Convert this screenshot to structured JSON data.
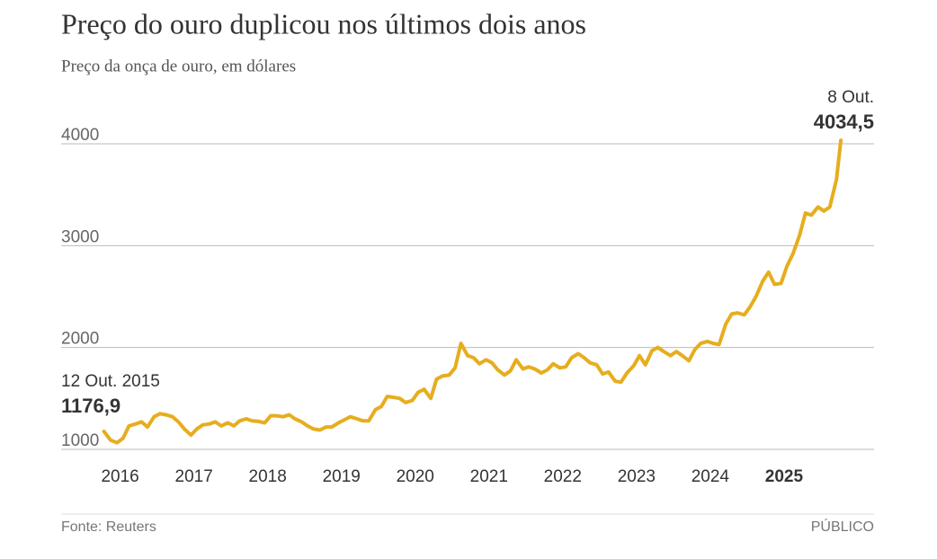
{
  "chart_data": {
    "type": "line",
    "title": "Preço do ouro duplicou nos últimos dois anos",
    "subtitle": "Preço da onça de ouro, em dólares",
    "source": "Fonte: Reuters",
    "brand": "PÚBLICO",
    "x": [
      2015.78,
      2015.87,
      2015.96,
      2016.04,
      2016.12,
      2016.21,
      2016.29,
      2016.37,
      2016.46,
      2016.54,
      2016.62,
      2016.71,
      2016.79,
      2016.87,
      2016.96,
      2017.04,
      2017.12,
      2017.21,
      2017.29,
      2017.37,
      2017.46,
      2017.54,
      2017.62,
      2017.71,
      2017.79,
      2017.87,
      2017.96,
      2018.04,
      2018.12,
      2018.21,
      2018.29,
      2018.37,
      2018.46,
      2018.54,
      2018.62,
      2018.71,
      2018.79,
      2018.87,
      2018.96,
      2019.04,
      2019.12,
      2019.21,
      2019.29,
      2019.37,
      2019.46,
      2019.54,
      2019.62,
      2019.71,
      2019.79,
      2019.87,
      2019.96,
      2020.04,
      2020.12,
      2020.21,
      2020.29,
      2020.37,
      2020.46,
      2020.54,
      2020.62,
      2020.71,
      2020.79,
      2020.87,
      2020.96,
      2021.04,
      2021.12,
      2021.21,
      2021.29,
      2021.37,
      2021.46,
      2021.54,
      2021.62,
      2021.71,
      2021.79,
      2021.87,
      2021.96,
      2022.04,
      2022.12,
      2022.21,
      2022.29,
      2022.37,
      2022.46,
      2022.54,
      2022.62,
      2022.71,
      2022.79,
      2022.87,
      2022.96,
      2023.04,
      2023.12,
      2023.21,
      2023.29,
      2023.37,
      2023.46,
      2023.54,
      2023.62,
      2023.71,
      2023.79,
      2023.87,
      2023.96,
      2024.04,
      2024.12,
      2024.21,
      2024.29,
      2024.37,
      2024.46,
      2024.54,
      2024.62,
      2024.71,
      2024.79,
      2024.87,
      2024.96,
      2025.04,
      2025.12,
      2025.21,
      2025.29,
      2025.37,
      2025.46,
      2025.54,
      2025.62,
      2025.71,
      2025.77
    ],
    "series": [
      {
        "name": "Preço do ouro",
        "color": "#e6ad1e",
        "values": [
          1176.9,
          1090,
          1065,
          1110,
          1230,
          1250,
          1270,
          1220,
          1320,
          1350,
          1340,
          1320,
          1270,
          1200,
          1140,
          1200,
          1240,
          1250,
          1270,
          1230,
          1260,
          1230,
          1280,
          1300,
          1280,
          1275,
          1260,
          1330,
          1330,
          1320,
          1340,
          1300,
          1270,
          1230,
          1200,
          1190,
          1220,
          1220,
          1260,
          1290,
          1320,
          1300,
          1280,
          1280,
          1390,
          1420,
          1520,
          1510,
          1500,
          1460,
          1480,
          1560,
          1590,
          1500,
          1690,
          1720,
          1730,
          1800,
          2040,
          1920,
          1900,
          1840,
          1880,
          1850,
          1780,
          1730,
          1770,
          1880,
          1790,
          1810,
          1790,
          1750,
          1780,
          1840,
          1800,
          1810,
          1900,
          1940,
          1900,
          1850,
          1830,
          1740,
          1760,
          1670,
          1660,
          1750,
          1820,
          1920,
          1830,
          1970,
          2000,
          1960,
          1920,
          1960,
          1920,
          1870,
          1980,
          2040,
          2060,
          2040,
          2030,
          2230,
          2330,
          2340,
          2320,
          2400,
          2500,
          2650,
          2740,
          2620,
          2630,
          2800,
          2920,
          3100,
          3320,
          3300,
          3380,
          3340,
          3380,
          3650,
          4034.5
        ]
      }
    ],
    "xlim": [
      2015.2,
      2026.22
    ],
    "xticks": [
      2016,
      2017,
      2018,
      2019,
      2020,
      2021,
      2022,
      2023,
      2024,
      2025
    ],
    "bold_xtick": 2025,
    "ylim": [
      1000,
      4000
    ],
    "yticks": [
      1000,
      2000,
      3000,
      4000
    ],
    "grid": true,
    "annotations": [
      {
        "text": "12 Out. 2015",
        "x": 2015.78,
        "value": 1176.9,
        "value_label": "1176,9",
        "align": "left"
      },
      {
        "text": "8 Out.",
        "x": 2025.77,
        "value": 4034.5,
        "value_label": "4034,5",
        "align": "right"
      }
    ]
  }
}
